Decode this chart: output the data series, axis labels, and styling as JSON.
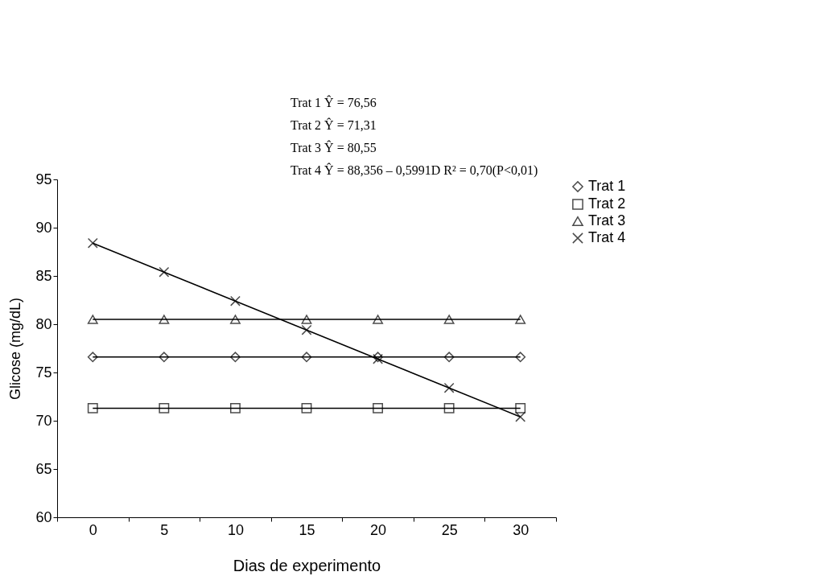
{
  "chart_data": {
    "type": "line",
    "xlabel": "Dias de experimento",
    "ylabel": "Glicose (mg/dL)",
    "categories": [
      "0",
      "5",
      "10",
      "15",
      "20",
      "25",
      "30"
    ],
    "series": [
      {
        "name": "Trat 1",
        "color": "#000000",
        "marker": "diamond",
        "values": [
          76.6,
          76.6,
          76.6,
          76.6,
          76.6,
          76.6,
          76.6
        ]
      },
      {
        "name": "Trat 2",
        "color": "#000000",
        "marker": "square",
        "values": [
          71.3,
          71.3,
          71.3,
          71.3,
          71.3,
          71.3,
          71.3
        ]
      },
      {
        "name": "Trat 3",
        "color": "#000000",
        "marker": "triangle",
        "values": [
          80.5,
          80.5,
          80.5,
          80.5,
          80.5,
          80.5,
          80.5
        ]
      },
      {
        "name": "Trat 4",
        "color": "#000000",
        "marker": "cross",
        "values": [
          88.4,
          85.4,
          82.4,
          79.4,
          76.4,
          73.4,
          70.4
        ]
      }
    ],
    "ylim": [
      60,
      95
    ],
    "yticks": [
      60,
      65,
      70,
      75,
      80,
      85,
      90,
      95
    ],
    "grid": false,
    "legend": "right",
    "line_style": "solid",
    "annotations": [
      "Trat 1  Ŷ = 76,56",
      "Trat 2  Ŷ = 71,31",
      "Trat 3  Ŷ = 80,55",
      "Trat 4  Ŷ = 88,356 – 0,5991D   R² = 0,70(P<0,01)"
    ]
  }
}
